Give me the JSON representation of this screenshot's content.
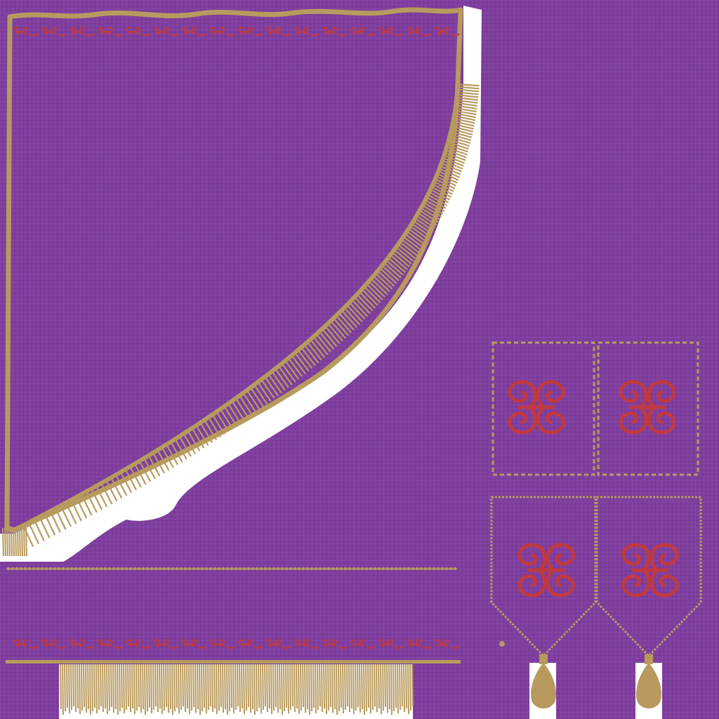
{
  "texture": {
    "kind": "vestment texture atlas",
    "fabric_color": "#7f3f9e",
    "fabric_thread_light": "#8c4bab",
    "fabric_thread_dark": "#74358f",
    "trim_color": "#b89a5e",
    "trim_dark": "#9c7f46",
    "embroidery_color": "#c0393f",
    "fringe_shadow": "#ffffff",
    "patterns": [
      "scroll-border",
      "scroll-motif",
      "fringe",
      "rope-braid",
      "tassel"
    ]
  }
}
